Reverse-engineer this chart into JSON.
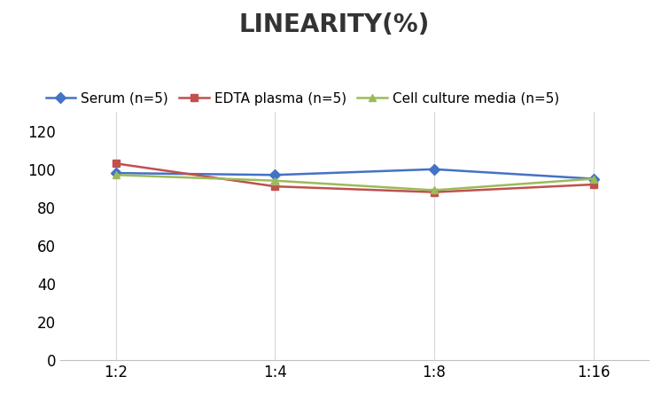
{
  "title": "LINEARITY(%)",
  "title_fontsize": 20,
  "title_fontweight": "bold",
  "x_labels": [
    "1:2",
    "1:4",
    "1:8",
    "1:16"
  ],
  "x_positions": [
    0,
    1,
    2,
    3
  ],
  "series": [
    {
      "label": "Serum (n=5)",
      "values": [
        98,
        97,
        100,
        95
      ],
      "color": "#4472C4",
      "marker": "D",
      "markersize": 6
    },
    {
      "label": "EDTA plasma (n=5)",
      "values": [
        103,
        91,
        88,
        92
      ],
      "color": "#C0504D",
      "marker": "s",
      "markersize": 6
    },
    {
      "label": "Cell culture media (n=5)",
      "values": [
        97,
        94,
        89,
        95
      ],
      "color": "#9BBB59",
      "marker": "^",
      "markersize": 6
    }
  ],
  "ylim": [
    0,
    130
  ],
  "yticks": [
    0,
    20,
    40,
    60,
    80,
    100,
    120
  ],
  "tick_fontsize": 12,
  "legend_fontsize": 11,
  "background_color": "#ffffff",
  "grid_color": "#d8d8d8",
  "spine_color": "#c0c0c0"
}
